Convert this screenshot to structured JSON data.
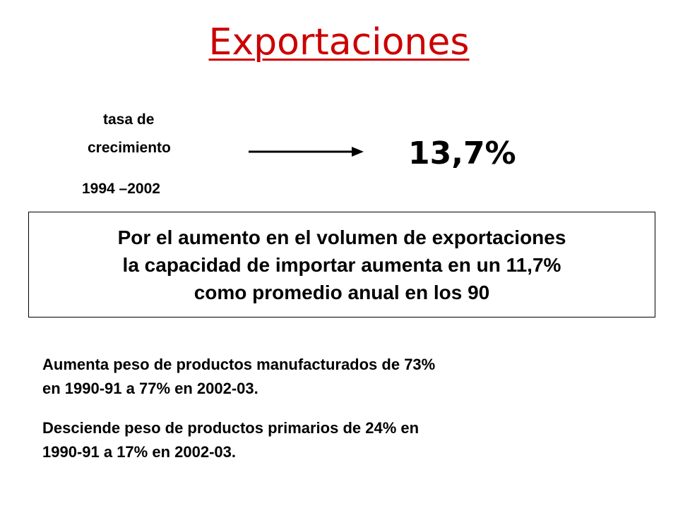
{
  "header": {
    "title": "Exportaciones"
  },
  "growth": {
    "label_lines": [
      "tasa de",
      "crecimiento",
      "1994 –2002"
    ],
    "rate": "13,7%"
  },
  "box": {
    "lines": [
      "Por el aumento en el volumen de exportaciones",
      "la capacidad de importar aumenta en un 11,7%",
      "como promedio anual en los 90"
    ]
  },
  "points": [
    {
      "lines": [
        "Aumenta peso de productos manufacturados de 73%",
        "en 1990-91 a 77% en 2002-03."
      ]
    },
    {
      "lines": [
        "Desciende peso de productos primarios de 24% en",
        "1990-91 a 17% en 2002-03."
      ]
    }
  ]
}
